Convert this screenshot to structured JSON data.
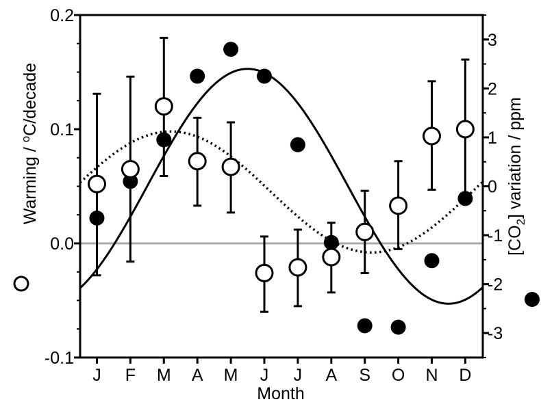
{
  "chart_data": {
    "type": "scatter",
    "xlabel": "Month",
    "categories": [
      "J",
      "F",
      "M",
      "A",
      "M",
      "J",
      "J",
      "A",
      "S",
      "O",
      "N",
      "D"
    ],
    "y_left": {
      "label_parts": [
        "Warming / ",
        "o",
        "C/decade"
      ],
      "ylim": [
        -0.1,
        0.2
      ],
      "ticks": [
        -0.1,
        0.0,
        0.1,
        0.2
      ],
      "tick_labels": [
        "-0.1",
        "0.0",
        "0.1",
        "0.2"
      ]
    },
    "y_right": {
      "label_parts": [
        "[CO",
        "2",
        "] variation / ppm"
      ],
      "ylim": [
        -3.5,
        3.5
      ],
      "ticks": [
        -3,
        -2,
        -1,
        0,
        1,
        2,
        3
      ],
      "tick_labels": [
        "-3",
        "-2",
        "-1",
        "0",
        "1",
        "2",
        "3"
      ]
    },
    "series": [
      {
        "marker": "open-circle",
        "axis": "left",
        "values": [
          0.052,
          0.065,
          0.12,
          0.072,
          0.067,
          -0.026,
          -0.021,
          -0.012,
          0.01,
          0.033,
          0.094,
          0.1
        ],
        "error": [
          [
            -0.028,
            0.131
          ],
          [
            -0.016,
            0.146
          ],
          [
            0.059,
            0.18
          ],
          [
            0.033,
            0.11
          ],
          [
            0.027,
            0.106
          ],
          [
            -0.06,
            0.006
          ],
          [
            -0.055,
            0.012
          ],
          [
            -0.043,
            0.018
          ],
          [
            -0.026,
            0.046
          ],
          [
            -0.005,
            0.072
          ],
          [
            0.047,
            0.142
          ],
          [
            0.041,
            0.161
          ]
        ]
      },
      {
        "marker": "filled-circle",
        "axis": "right",
        "values": [
          -0.65,
          0.1,
          0.95,
          2.25,
          2.8,
          2.25,
          0.85,
          -1.15,
          -2.85,
          -2.88,
          -1.52,
          -0.25
        ]
      }
    ],
    "curves": [
      {
        "style": "solid",
        "axis": "right",
        "amplitude": 2.4,
        "peak_month": 4.5
      },
      {
        "style": "dotted",
        "axis": "left",
        "offset": 0.045,
        "amplitude": 0.053,
        "peak_month": 2.2
      }
    ],
    "zero_line": {
      "value": 0.0,
      "color": "#aaaaaa"
    }
  }
}
